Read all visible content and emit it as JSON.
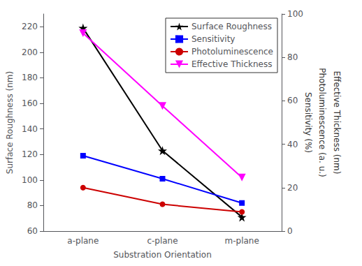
{
  "chart_data": {
    "type": "line",
    "xlabel": "Substration Orientation",
    "ylabel": "Surface Roughness (nm)",
    "annotations": [
      "Sensitivity (%)",
      "Photoluminescence (a. u.)",
      "Effective Thickness (nm)"
    ],
    "categories": [
      "a-plane",
      "c-plane",
      "m-plane"
    ],
    "series": [
      {
        "name": "Surface Roughness",
        "color": "#000000",
        "marker": "star",
        "values": [
          219,
          123,
          71
        ]
      },
      {
        "name": "Sensitivity",
        "color": "#0000ff",
        "marker": "square",
        "values": [
          119,
          101,
          82
        ]
      },
      {
        "name": "Photoluminescence",
        "color": "#cc0000",
        "marker": "circle",
        "values": [
          94,
          81,
          75
        ]
      },
      {
        "name": "Effective Thickness",
        "color": "#ff00ff",
        "marker": "triangle_down",
        "values": [
          215,
          158,
          102
        ]
      }
    ],
    "ylim": [
      60,
      230
    ],
    "yticks": [
      60,
      80,
      100,
      120,
      140,
      160,
      180,
      200,
      220
    ],
    "y2lim": [
      0,
      100
    ],
    "y2ticks": [
      0,
      20,
      40,
      60,
      80,
      100
    ],
    "grid": false,
    "legend": "upper right"
  }
}
